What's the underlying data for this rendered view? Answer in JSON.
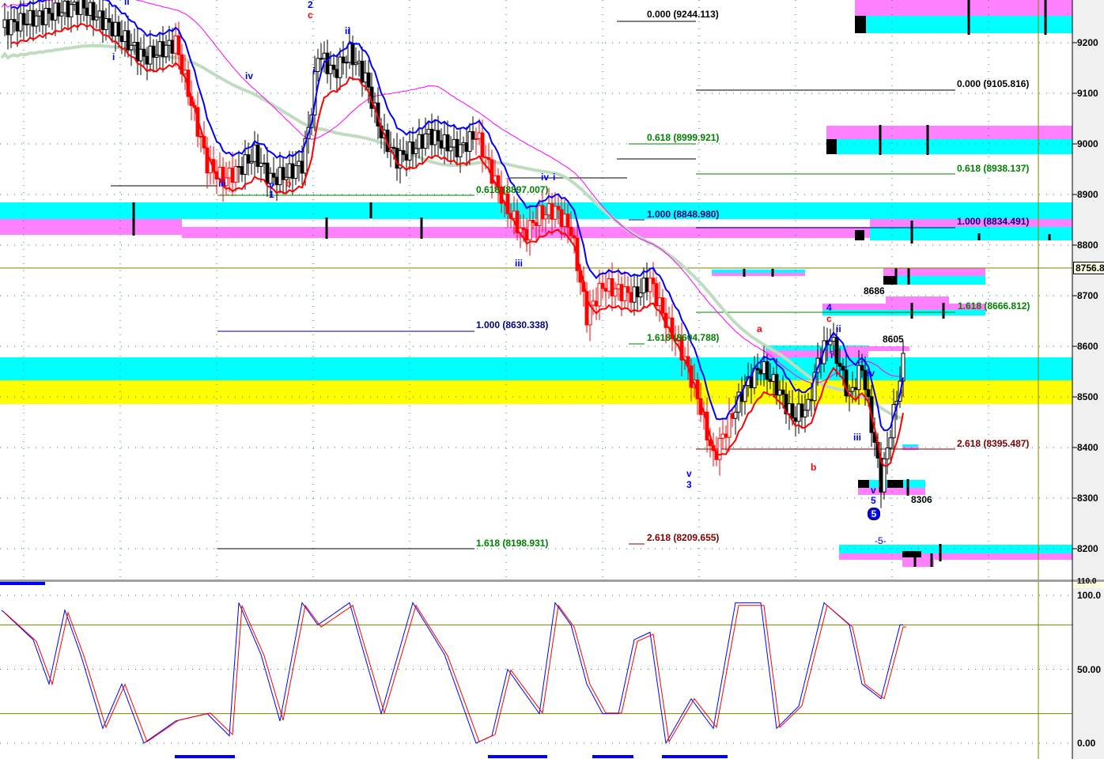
{
  "chart_data": {
    "type": "candlestick",
    "price_axis": {
      "ticks": [
        9200,
        9100,
        9000,
        8900,
        8800,
        8700,
        8600,
        8500,
        8400,
        8300,
        8200
      ],
      "range": [
        8170,
        9285
      ],
      "current_price_label": "8756.8"
    },
    "oscillator_axis": {
      "ticks": [
        "100.0",
        "50.00",
        "0.00"
      ],
      "range": [
        0,
        100
      ],
      "top_label": "110.0"
    },
    "close_path": [
      [
        0,
        9230
      ],
      [
        25,
        9275
      ],
      [
        35,
        9230
      ],
      [
        45,
        9170
      ],
      [
        55,
        9200
      ],
      [
        60,
        9080
      ],
      [
        65,
        8960
      ],
      [
        70,
        8930
      ],
      [
        75,
        8950
      ],
      [
        80,
        8980
      ],
      [
        85,
        8930
      ],
      [
        90,
        8940
      ],
      [
        95,
        8960
      ],
      [
        98,
        9070
      ],
      [
        100,
        9180
      ],
      [
        105,
        9140
      ],
      [
        110,
        9180
      ],
      [
        115,
        9130
      ],
      [
        120,
        9020
      ],
      [
        125,
        8970
      ],
      [
        130,
        8990
      ],
      [
        135,
        9020
      ],
      [
        140,
        9000
      ],
      [
        145,
        8990
      ],
      [
        150,
        9020
      ],
      [
        155,
        8940
      ],
      [
        160,
        8870
      ],
      [
        165,
        8820
      ],
      [
        170,
        8860
      ],
      [
        175,
        8870
      ],
      [
        180,
        8830
      ],
      [
        185,
        8660
      ],
      [
        190,
        8720
      ],
      [
        200,
        8700
      ],
      [
        205,
        8730
      ],
      [
        210,
        8650
      ],
      [
        215,
        8590
      ],
      [
        220,
        8500
      ],
      [
        225,
        8380
      ],
      [
        230,
        8450
      ],
      [
        235,
        8520
      ],
      [
        240,
        8560
      ],
      [
        245,
        8520
      ],
      [
        250,
        8460
      ],
      [
        255,
        8480
      ],
      [
        258,
        8570
      ],
      [
        262,
        8620
      ],
      [
        268,
        8500
      ],
      [
        272,
        8560
      ],
      [
        278,
        8330
      ],
      [
        285,
        8570
      ]
    ],
    "oscillator_path": [
      [
        0,
        90
      ],
      [
        10,
        70
      ],
      [
        15,
        40
      ],
      [
        20,
        90
      ],
      [
        25,
        60
      ],
      [
        32,
        10
      ],
      [
        38,
        40
      ],
      [
        45,
        0
      ],
      [
        55,
        15
      ],
      [
        65,
        20
      ],
      [
        72,
        5
      ],
      [
        75,
        95
      ],
      [
        82,
        60
      ],
      [
        88,
        15
      ],
      [
        95,
        95
      ],
      [
        100,
        80
      ],
      [
        110,
        95
      ],
      [
        120,
        20
      ],
      [
        130,
        95
      ],
      [
        140,
        60
      ],
      [
        150,
        0
      ],
      [
        155,
        5
      ],
      [
        160,
        50
      ],
      [
        170,
        20
      ],
      [
        175,
        95
      ],
      [
        180,
        80
      ],
      [
        185,
        40
      ],
      [
        190,
        20
      ],
      [
        195,
        20
      ],
      [
        200,
        70
      ],
      [
        205,
        75
      ],
      [
        210,
        0
      ],
      [
        218,
        30
      ],
      [
        225,
        10
      ],
      [
        232,
        95
      ],
      [
        240,
        95
      ],
      [
        245,
        10
      ],
      [
        252,
        25
      ],
      [
        260,
        95
      ],
      [
        268,
        80
      ],
      [
        272,
        40
      ],
      [
        278,
        30
      ],
      [
        284,
        80
      ]
    ],
    "oscillator_levels": [
      80,
      20
    ],
    "fib_labels": [
      "0.000 (9244.113)",
      "0.000 (9105.816)",
      "0.618 (8999.921)",
      "0.618 (8938.137)",
      "0.618 (8897.007)",
      "1.000 (8848.980)",
      "1.000 (8834.491)",
      "1.618 (8666.812)",
      "1.000 (8630.338)",
      "1.618 (8604.788)",
      "2.618 (8395.487)",
      "1.618 (8198.931)",
      "2.618 (8209.655)"
    ],
    "price_labels": [
      "8686",
      "8605",
      "8306"
    ],
    "wave_labels": [
      "i",
      "ii",
      "2",
      "c",
      "i",
      "iii",
      "v",
      "1",
      "b",
      "iv",
      "ii",
      "i",
      "iii",
      "iv",
      "v",
      "3",
      "a",
      "b",
      "c",
      "4",
      "ii",
      "i",
      "iii",
      "iv",
      "v",
      "5",
      "5",
      "-5-"
    ],
    "colors": {
      "up": "#ffffff",
      "down_black": "#000000",
      "down_red": "#ff0000",
      "fast_ma": "#0000ff",
      "slow_ma": "#ff0000",
      "ma_magenta": "#ff00ff",
      "ma_long": "#c0dcc0",
      "zone_cyan": "#00ffff",
      "zone_magenta": "#ff80ff",
      "zone_yellow": "#ffff00",
      "current_line": "#808000",
      "axis_bg": "#f0f0f0"
    }
  }
}
